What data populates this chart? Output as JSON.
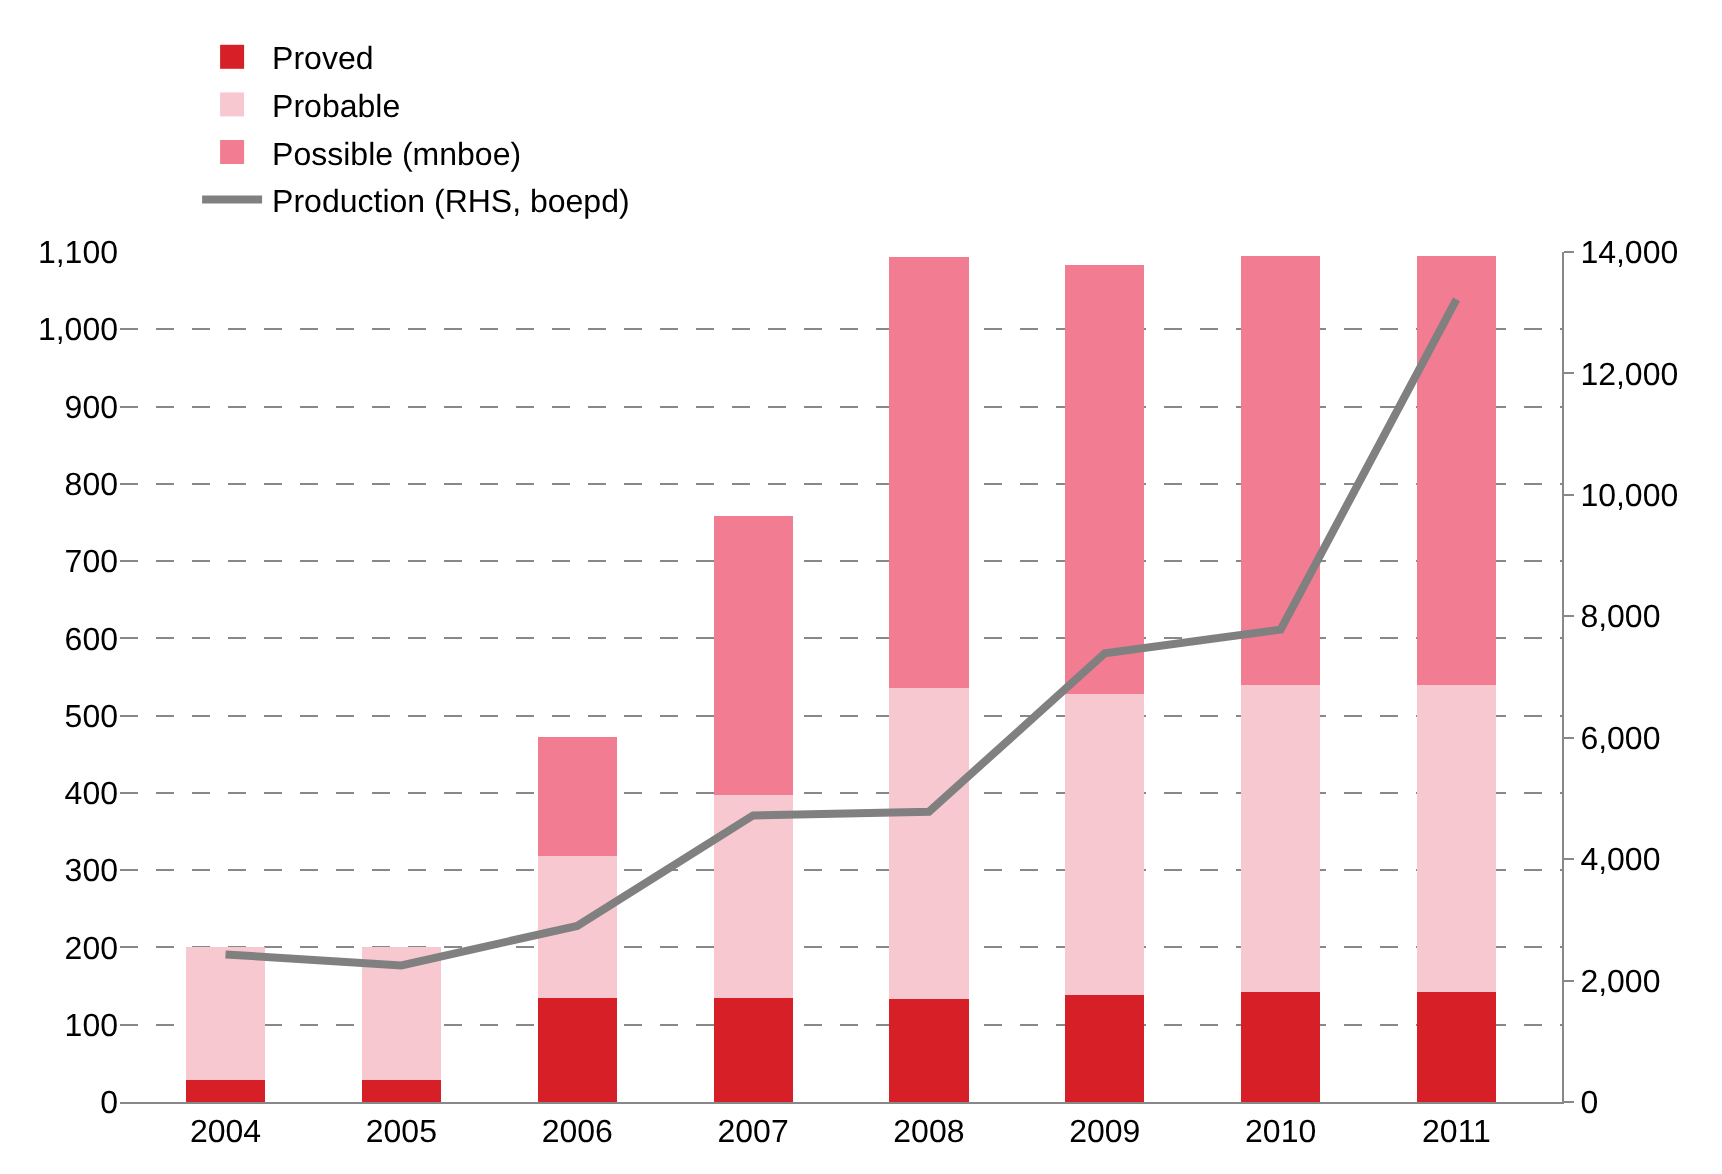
{
  "chart_data": {
    "type": "bar",
    "stacked": true,
    "categories": [
      "2004",
      "2005",
      "2006",
      "2007",
      "2008",
      "2009",
      "2010",
      "2011"
    ],
    "series": [
      {
        "name": "Proved",
        "color": "#d71f27",
        "values": [
          28,
          28,
          135,
          135,
          133,
          138,
          143,
          143
        ]
      },
      {
        "name": "Probable",
        "color": "#f8c8d0",
        "values": [
          172,
          172,
          183,
          262,
          403,
          390,
          397,
          397
        ]
      },
      {
        "name": "Possible (mnboe)",
        "color": "#f27c92",
        "values": [
          0,
          0,
          154,
          361,
          557,
          555,
          555,
          555
        ]
      },
      {
        "name": "Production (RHS, boepd)",
        "type": "line",
        "axis": "y2",
        "color": "#808080",
        "marker": "none",
        "line_style": "solid",
        "values": [
          2430,
          2250,
          2900,
          4720,
          4780,
          7390,
          7780,
          13220
        ]
      }
    ],
    "ylim": [
      0,
      1100
    ],
    "yticks": [
      0,
      100,
      200,
      300,
      400,
      500,
      600,
      700,
      800,
      900,
      {
        "value": 1000,
        "label": "1,000"
      },
      {
        "value": 1100,
        "label": "1,100"
      }
    ],
    "y2lim": [
      0,
      14000
    ],
    "y2ticks": [
      0,
      {
        "value": 2000,
        "label": "2,000"
      },
      {
        "value": 4000,
        "label": "4,000"
      },
      {
        "value": 6000,
        "label": "6,000"
      },
      {
        "value": 8000,
        "label": "8,000"
      },
      {
        "value": 10000,
        "label": "10,000"
      },
      {
        "value": 12000,
        "label": "12,000"
      },
      {
        "value": 14000,
        "label": "14,000"
      }
    ],
    "grid": "y",
    "legend": "top"
  }
}
